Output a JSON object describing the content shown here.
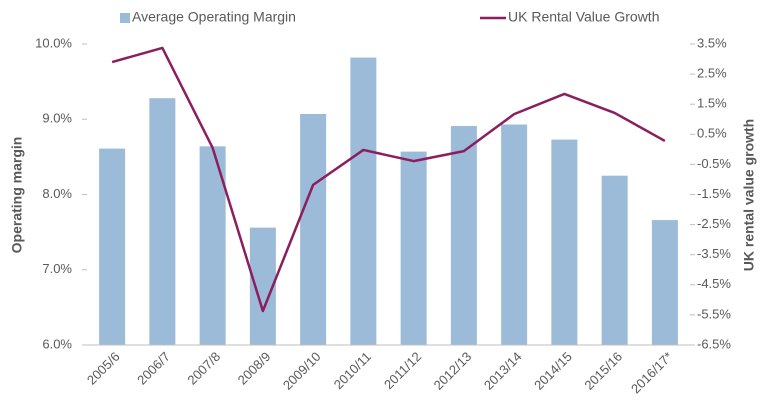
{
  "chart_data": {
    "type": "bar-line",
    "categories": [
      "2005/6",
      "2006/7",
      "2007/8",
      "2008/9",
      "2009/10",
      "2010/11",
      "2011/12",
      "2012/13",
      "2013/14",
      "2014/15",
      "2015/16",
      "2016/17*"
    ],
    "series": [
      {
        "name": "Average Operating Margin",
        "type": "bar",
        "color": "#9bbbd9",
        "axis": "y",
        "values": [
          8.61,
          9.28,
          8.64,
          7.56,
          9.07,
          9.82,
          8.57,
          8.91,
          8.93,
          8.73,
          8.25,
          7.66
        ]
      },
      {
        "name": "UK Rental Value Growth",
        "type": "line",
        "color": "#8b1e5f",
        "axis": "y2",
        "values": [
          2.9,
          3.37,
          0.05,
          -5.37,
          -1.18,
          -0.02,
          -0.39,
          -0.06,
          1.17,
          1.84,
          1.21,
          0.28
        ]
      }
    ],
    "ylabel": "Operating margin",
    "y2label": "UK rental value growth",
    "ylim": [
      6,
      10
    ],
    "yticks": [
      {
        "value": 6,
        "label": "6.0%"
      },
      {
        "value": 7,
        "label": "7.0%"
      },
      {
        "value": 8,
        "label": "8.0%"
      },
      {
        "value": 9,
        "label": "9.0%"
      },
      {
        "value": 10,
        "label": "10.0%"
      }
    ],
    "y2lim": [
      -6.5,
      3.5
    ],
    "y2ticks": [
      {
        "value": 3.5,
        "label": "3.5%"
      },
      {
        "value": 2.5,
        "label": "2.5%"
      },
      {
        "value": 1.5,
        "label": "1.5%"
      },
      {
        "value": 0.5,
        "label": "0.5%"
      },
      {
        "value": -0.5,
        "label": "-0.5%"
      },
      {
        "value": -1.5,
        "label": "-1.5%"
      },
      {
        "value": -2.5,
        "label": "-2.5%"
      },
      {
        "value": -3.5,
        "label": "-3.5%"
      },
      {
        "value": -4.5,
        "label": "-4.5%"
      },
      {
        "value": -5.5,
        "label": "-5.5%"
      },
      {
        "value": -6.5,
        "label": "-6.5%"
      }
    ],
    "legend": "top"
  }
}
